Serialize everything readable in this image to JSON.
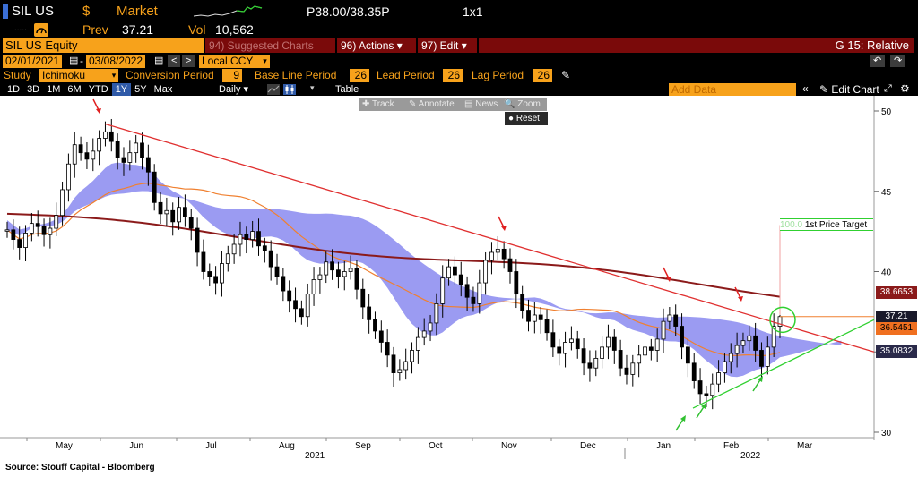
{
  "header": {
    "ticker": "SIL US",
    "currency": "$",
    "market_label": "Market",
    "bid_ask": "P38.00/38.35P",
    "size": "1x1",
    "prev_label": "Prev",
    "prev_value": "37.21",
    "vol_label": "Vol",
    "vol_value": "10,562",
    "ellipsis": "....."
  },
  "toolbar": {
    "security": "SIL US Equity",
    "suggested": "94) Suggested Charts",
    "actions": "96) Actions ▾",
    "edit": "97) Edit ▾",
    "graph_title": "G 15: Relative"
  },
  "range": {
    "start": "02/01/2021",
    "end": "03/08/2022",
    "currency": "Local CCY"
  },
  "study": {
    "label": "Study",
    "name": "Ichimoku",
    "conversion_label": "Conversion Period",
    "conversion_value": "9",
    "baseline_label": "Base Line Period",
    "baseline_value": "26",
    "lead_label": "Lead Period",
    "lead_value": "26",
    "lag_label": "Lag Period",
    "lag_value": "26"
  },
  "periods": {
    "tabs": [
      "1D",
      "3D",
      "1M",
      "6M",
      "YTD",
      "1Y",
      "5Y",
      "Max"
    ],
    "selected": "1Y",
    "frequency": "Daily ▾",
    "table": "Table",
    "add_data": "Add Data",
    "edit_chart": "✎ Edit Chart"
  },
  "chart_tools": {
    "track": "Track",
    "annotate": "Annotate",
    "news": "News",
    "zoom": "Zoom",
    "reset": "Reset"
  },
  "chart_data": {
    "type": "line",
    "title": "",
    "source": "Source:  Stouff Capital - Bloomberg",
    "x_ticks": [
      "May",
      "Jun",
      "Jul",
      "Aug",
      "Sep",
      "Oct",
      "Nov",
      "Dec",
      "Jan",
      "Feb",
      "Mar"
    ],
    "year_labels": [
      "2021",
      "2022"
    ],
    "y_ticks": [
      30,
      35,
      40,
      45,
      50
    ],
    "ylim": [
      30,
      50
    ],
    "price_labels": {
      "ma200": "38.6653",
      "last": "37.21",
      "ma50": "36.5451",
      "cloud": "35.0832"
    },
    "price_target_label": "1st Price Target",
    "price_target_prefix": "100.0",
    "colors": {
      "cloud": "#8a8af0",
      "ma200": "#8b1a1a",
      "ma50": "#f08030",
      "resistance": "#e03030",
      "support": "#30d030",
      "candle": "#000000",
      "circle": "#30d030"
    },
    "closes": [
      42.6,
      42.0,
      41.5,
      42.4,
      43.0,
      42.8,
      42.3,
      42.7,
      43.5,
      45.1,
      46.7,
      47.9,
      47.4,
      47.0,
      47.5,
      48.3,
      48.7,
      48.1,
      47.1,
      46.8,
      47.4,
      48.0,
      47.1,
      46.2,
      44.3,
      43.6,
      43.8,
      43.1,
      44.0,
      43.4,
      42.7,
      41.2,
      40.0,
      39.7,
      39.3,
      40.5,
      41.1,
      41.7,
      42.3,
      42.0,
      42.5,
      41.6,
      41.3,
      40.3,
      39.7,
      38.8,
      38.2,
      37.7,
      37.2,
      38.6,
      39.5,
      39.8,
      40.6,
      40.1,
      39.7,
      40.0,
      40.2,
      38.9,
      37.8,
      37.0,
      36.3,
      35.6,
      34.8,
      33.7,
      33.9,
      34.4,
      35.1,
      35.9,
      36.3,
      36.8,
      38.0,
      39.6,
      40.3,
      39.8,
      39.2,
      38.4,
      38.0,
      39.3,
      40.7,
      41.2,
      41.4,
      40.8,
      40.0,
      38.6,
      37.6,
      36.9,
      37.3,
      37.0,
      36.2,
      35.3,
      34.9,
      35.6,
      35.8,
      35.2,
      34.3,
      34.0,
      34.6,
      35.3,
      35.9,
      35.1,
      34.0,
      33.6,
      34.3,
      34.8,
      35.3,
      35.1,
      35.8,
      36.9,
      37.3,
      36.6,
      35.3,
      34.3,
      33.2,
      32.4,
      32.3,
      33.0,
      33.7,
      34.4,
      34.9,
      35.4,
      35.7,
      36.0,
      35.1,
      34.1,
      35.3,
      36.6,
      37.2
    ]
  }
}
